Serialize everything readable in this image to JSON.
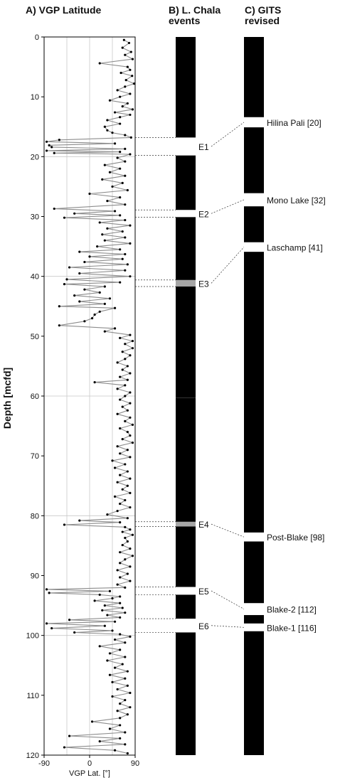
{
  "chart_data": {
    "type": "line",
    "panels": {
      "a": {
        "title": "A) VGP Latitude"
      },
      "b": {
        "title_line1": "B) L. Chala",
        "title_line2": "events"
      },
      "c": {
        "title_line1": "C) GITS",
        "title_line2": "revised"
      }
    },
    "ylabel": "Depth [mcfd]",
    "xlabel": "VGP Lat. [°]",
    "ylim": [
      0,
      120
    ],
    "xlim": [
      -90,
      90
    ],
    "y_ticks": [
      0,
      10,
      20,
      30,
      40,
      50,
      60,
      70,
      80,
      90,
      100,
      110,
      120
    ],
    "x_ticks": [
      -90,
      0,
      90
    ],
    "x_gridlines": [
      -45,
      0,
      45
    ],
    "y_gridlines": [
      20,
      40,
      60,
      80,
      100
    ],
    "series": [
      {
        "values": [
          [
            68,
            0.5
          ],
          [
            78,
            1
          ],
          [
            65,
            1.8
          ],
          [
            82,
            2.5
          ],
          [
            70,
            3
          ],
          [
            85,
            3.7
          ],
          [
            20,
            4.4
          ],
          [
            75,
            5
          ],
          [
            80,
            5.5
          ],
          [
            62,
            6
          ],
          [
            84,
            6.5
          ],
          [
            72,
            7.2
          ],
          [
            88,
            7.8
          ],
          [
            70,
            8.3
          ],
          [
            55,
            8.9
          ],
          [
            80,
            9.5
          ],
          [
            60,
            10
          ],
          [
            40,
            10.6
          ],
          [
            75,
            11.1
          ],
          [
            65,
            11.6
          ],
          [
            85,
            12.1
          ],
          [
            50,
            12.6
          ],
          [
            80,
            13
          ],
          [
            60,
            13.4
          ],
          [
            35,
            13.9
          ],
          [
            60,
            14.5
          ],
          [
            30,
            15
          ],
          [
            35,
            15.6
          ],
          [
            45,
            16
          ],
          [
            70,
            16.4
          ],
          [
            82,
            16.8
          ],
          [
            -60,
            17.2
          ],
          [
            -85,
            17.5
          ],
          [
            50,
            17.8
          ],
          [
            -80,
            18.1
          ],
          [
            -75,
            18.4
          ],
          [
            70,
            18.7
          ],
          [
            -85,
            19
          ],
          [
            60,
            19.2
          ],
          [
            -70,
            19.4
          ],
          [
            80,
            19.6
          ],
          [
            55,
            20.2
          ],
          [
            70,
            20.8
          ],
          [
            30,
            21.4
          ],
          [
            60,
            22
          ],
          [
            40,
            22.6
          ],
          [
            70,
            23.2
          ],
          [
            25,
            23.8
          ],
          [
            65,
            24.4
          ],
          [
            45,
            25
          ],
          [
            75,
            25.6
          ],
          [
            0,
            26.2
          ],
          [
            60,
            26.8
          ],
          [
            35,
            27.4
          ],
          [
            70,
            28
          ],
          [
            -70,
            28.7
          ],
          [
            50,
            29.1
          ],
          [
            -30,
            29.5
          ],
          [
            60,
            29.8
          ],
          [
            -50,
            30.2
          ],
          [
            70,
            30.6
          ],
          [
            20,
            31
          ],
          [
            80,
            31.5
          ],
          [
            35,
            32
          ],
          [
            65,
            32.5
          ],
          [
            25,
            33
          ],
          [
            70,
            33.5
          ],
          [
            30,
            34
          ],
          [
            80,
            34.5
          ],
          [
            15,
            35
          ],
          [
            60,
            35.5
          ],
          [
            -20,
            35.9
          ],
          [
            70,
            36.3
          ],
          [
            0,
            36.7
          ],
          [
            65,
            37.1
          ],
          [
            -10,
            37.6
          ],
          [
            75,
            38
          ],
          [
            -40,
            38.5
          ],
          [
            70,
            39
          ],
          [
            -20,
            39.5
          ],
          [
            80,
            40
          ],
          [
            -45,
            40.5
          ],
          [
            60,
            41
          ],
          [
            -50,
            41.3
          ],
          [
            30,
            41.7
          ],
          [
            -10,
            42.2
          ],
          [
            20,
            42.7
          ],
          [
            -30,
            43.2
          ],
          [
            40,
            43.7
          ],
          [
            -20,
            44.2
          ],
          [
            30,
            44.6
          ],
          [
            -60,
            45
          ],
          [
            50,
            45.3
          ],
          [
            20,
            45.9
          ],
          [
            10,
            46.4
          ],
          [
            5,
            47
          ],
          [
            -10,
            47.5
          ],
          [
            -60,
            48.2
          ],
          [
            50,
            48.7
          ],
          [
            30,
            49.2
          ],
          [
            80,
            49.8
          ],
          [
            60,
            50.3
          ],
          [
            85,
            50.8
          ],
          [
            70,
            51.3
          ],
          [
            85,
            52
          ],
          [
            65,
            52.6
          ],
          [
            80,
            53.2
          ],
          [
            70,
            53.8
          ],
          [
            55,
            54.4
          ],
          [
            75,
            55
          ],
          [
            65,
            55.6
          ],
          [
            80,
            56.2
          ],
          [
            60,
            56.8
          ],
          [
            75,
            57.3
          ],
          [
            10,
            57.7
          ],
          [
            70,
            58.2
          ],
          [
            55,
            58.8
          ],
          [
            80,
            59.4
          ],
          [
            70,
            60
          ],
          [
            60,
            60.6
          ],
          [
            80,
            61.2
          ],
          [
            65,
            61.8
          ],
          [
            75,
            62.4
          ],
          [
            55,
            63
          ],
          [
            80,
            63.6
          ],
          [
            70,
            64.2
          ],
          [
            85,
            64.8
          ],
          [
            60,
            65.4
          ],
          [
            75,
            66
          ],
          [
            80,
            66.6
          ],
          [
            65,
            67.2
          ],
          [
            85,
            67.8
          ],
          [
            55,
            68.4
          ],
          [
            75,
            69
          ],
          [
            60,
            69.6
          ],
          [
            80,
            70.2
          ],
          [
            45,
            70.8
          ],
          [
            70,
            71.4
          ],
          [
            50,
            72
          ],
          [
            75,
            72.6
          ],
          [
            60,
            73.2
          ],
          [
            80,
            73.8
          ],
          [
            55,
            74.4
          ],
          [
            75,
            75
          ],
          [
            65,
            75.6
          ],
          [
            80,
            76.2
          ],
          [
            50,
            76.8
          ],
          [
            70,
            77.4
          ],
          [
            60,
            78
          ],
          [
            80,
            78.6
          ],
          [
            55,
            79.2
          ],
          [
            35,
            79.8
          ],
          [
            75,
            80.4
          ],
          [
            -20,
            80.8
          ],
          [
            60,
            81.1
          ],
          [
            -50,
            81.5
          ],
          [
            70,
            81.9
          ],
          [
            80,
            82.3
          ],
          [
            65,
            82.7
          ],
          [
            85,
            83.2
          ],
          [
            70,
            83.7
          ],
          [
            75,
            84.3
          ],
          [
            65,
            84.9
          ],
          [
            80,
            85.5
          ],
          [
            60,
            86.1
          ],
          [
            85,
            86.7
          ],
          [
            70,
            87.3
          ],
          [
            60,
            87.9
          ],
          [
            80,
            88.5
          ],
          [
            55,
            89.1
          ],
          [
            75,
            89.7
          ],
          [
            60,
            90.3
          ],
          [
            80,
            90.9
          ],
          [
            55,
            91.5
          ],
          [
            70,
            92
          ],
          [
            -85,
            92.3
          ],
          [
            40,
            92.6
          ],
          [
            -80,
            92.9
          ],
          [
            20,
            93.2
          ],
          [
            60,
            93.5
          ],
          [
            45,
            93.8
          ],
          [
            10,
            94.2
          ],
          [
            60,
            94.6
          ],
          [
            30,
            95
          ],
          [
            65,
            95.4
          ],
          [
            25,
            95.8
          ],
          [
            70,
            96.2
          ],
          [
            35,
            96.6
          ],
          [
            60,
            97
          ],
          [
            -40,
            97.4
          ],
          [
            50,
            97.7
          ],
          [
            -85,
            98
          ],
          [
            30,
            98.4
          ],
          [
            -75,
            98.8
          ],
          [
            45,
            99.2
          ],
          [
            -30,
            99.5
          ],
          [
            60,
            99.8
          ],
          [
            80,
            100.2
          ],
          [
            50,
            100.7
          ],
          [
            70,
            101.2
          ],
          [
            20,
            101.8
          ],
          [
            60,
            102.4
          ],
          [
            40,
            103
          ],
          [
            70,
            103.6
          ],
          [
            35,
            104.2
          ],
          [
            65,
            104.8
          ],
          [
            50,
            105.4
          ],
          [
            75,
            106
          ],
          [
            40,
            106.6
          ],
          [
            70,
            107.2
          ],
          [
            45,
            107.8
          ],
          [
            75,
            108.4
          ],
          [
            55,
            109
          ],
          [
            80,
            109.6
          ],
          [
            45,
            110.2
          ],
          [
            70,
            110.8
          ],
          [
            60,
            111.4
          ],
          [
            80,
            112
          ],
          [
            55,
            112.6
          ],
          [
            75,
            113.2
          ],
          [
            60,
            113.8
          ],
          [
            5,
            114.4
          ],
          [
            60,
            115
          ],
          [
            40,
            115.6
          ],
          [
            70,
            116.2
          ],
          [
            -40,
            116.8
          ],
          [
            60,
            117.2
          ],
          [
            20,
            117.7
          ],
          [
            70,
            118.2
          ],
          [
            -50,
            118.7
          ],
          [
            50,
            119.2
          ],
          [
            75,
            119.7
          ]
        ]
      }
    ],
    "lake_chala_events": [
      {
        "label": "E1",
        "top": 16.8,
        "bottom": 19.8,
        "fill": "#ffffff"
      },
      {
        "label": "E2",
        "top": 28.9,
        "bottom": 30.1,
        "fill": "#ffffff"
      },
      {
        "label": "E3",
        "top": 40.6,
        "bottom": 41.7,
        "fill": "#a6a6a6"
      },
      {
        "label": "E4",
        "top": 81.0,
        "bottom": 81.8,
        "fill": "#a6a6a6"
      },
      {
        "label": "E5",
        "top": 91.9,
        "bottom": 93.2,
        "fill": "#ffffff"
      },
      {
        "label": "E6",
        "top": 97.2,
        "bottom": 99.5,
        "fill": "#ffffff"
      }
    ],
    "gits_events": [
      {
        "label": "Hilina Pali [20]",
        "top": 13.4,
        "bottom": 15.1
      },
      {
        "label": "Mono Lake [32]",
        "top": 26.1,
        "bottom": 28.3
      },
      {
        "label": "Laschamp [41]",
        "top": 34.3,
        "bottom": 35.9
      },
      {
        "label": "Post-Blake [98]",
        "top": 82.8,
        "bottom": 84.3
      },
      {
        "label": "Blake-2 [112]",
        "top": 94.6,
        "bottom": 96.6
      },
      {
        "label": "Blake-1 [116]",
        "top": 98.0,
        "bottom": 99.3
      }
    ],
    "colors": {
      "line": "#8c8c8c",
      "points": "#000000",
      "column": "#000000",
      "grid": "#c8c8c8"
    }
  }
}
